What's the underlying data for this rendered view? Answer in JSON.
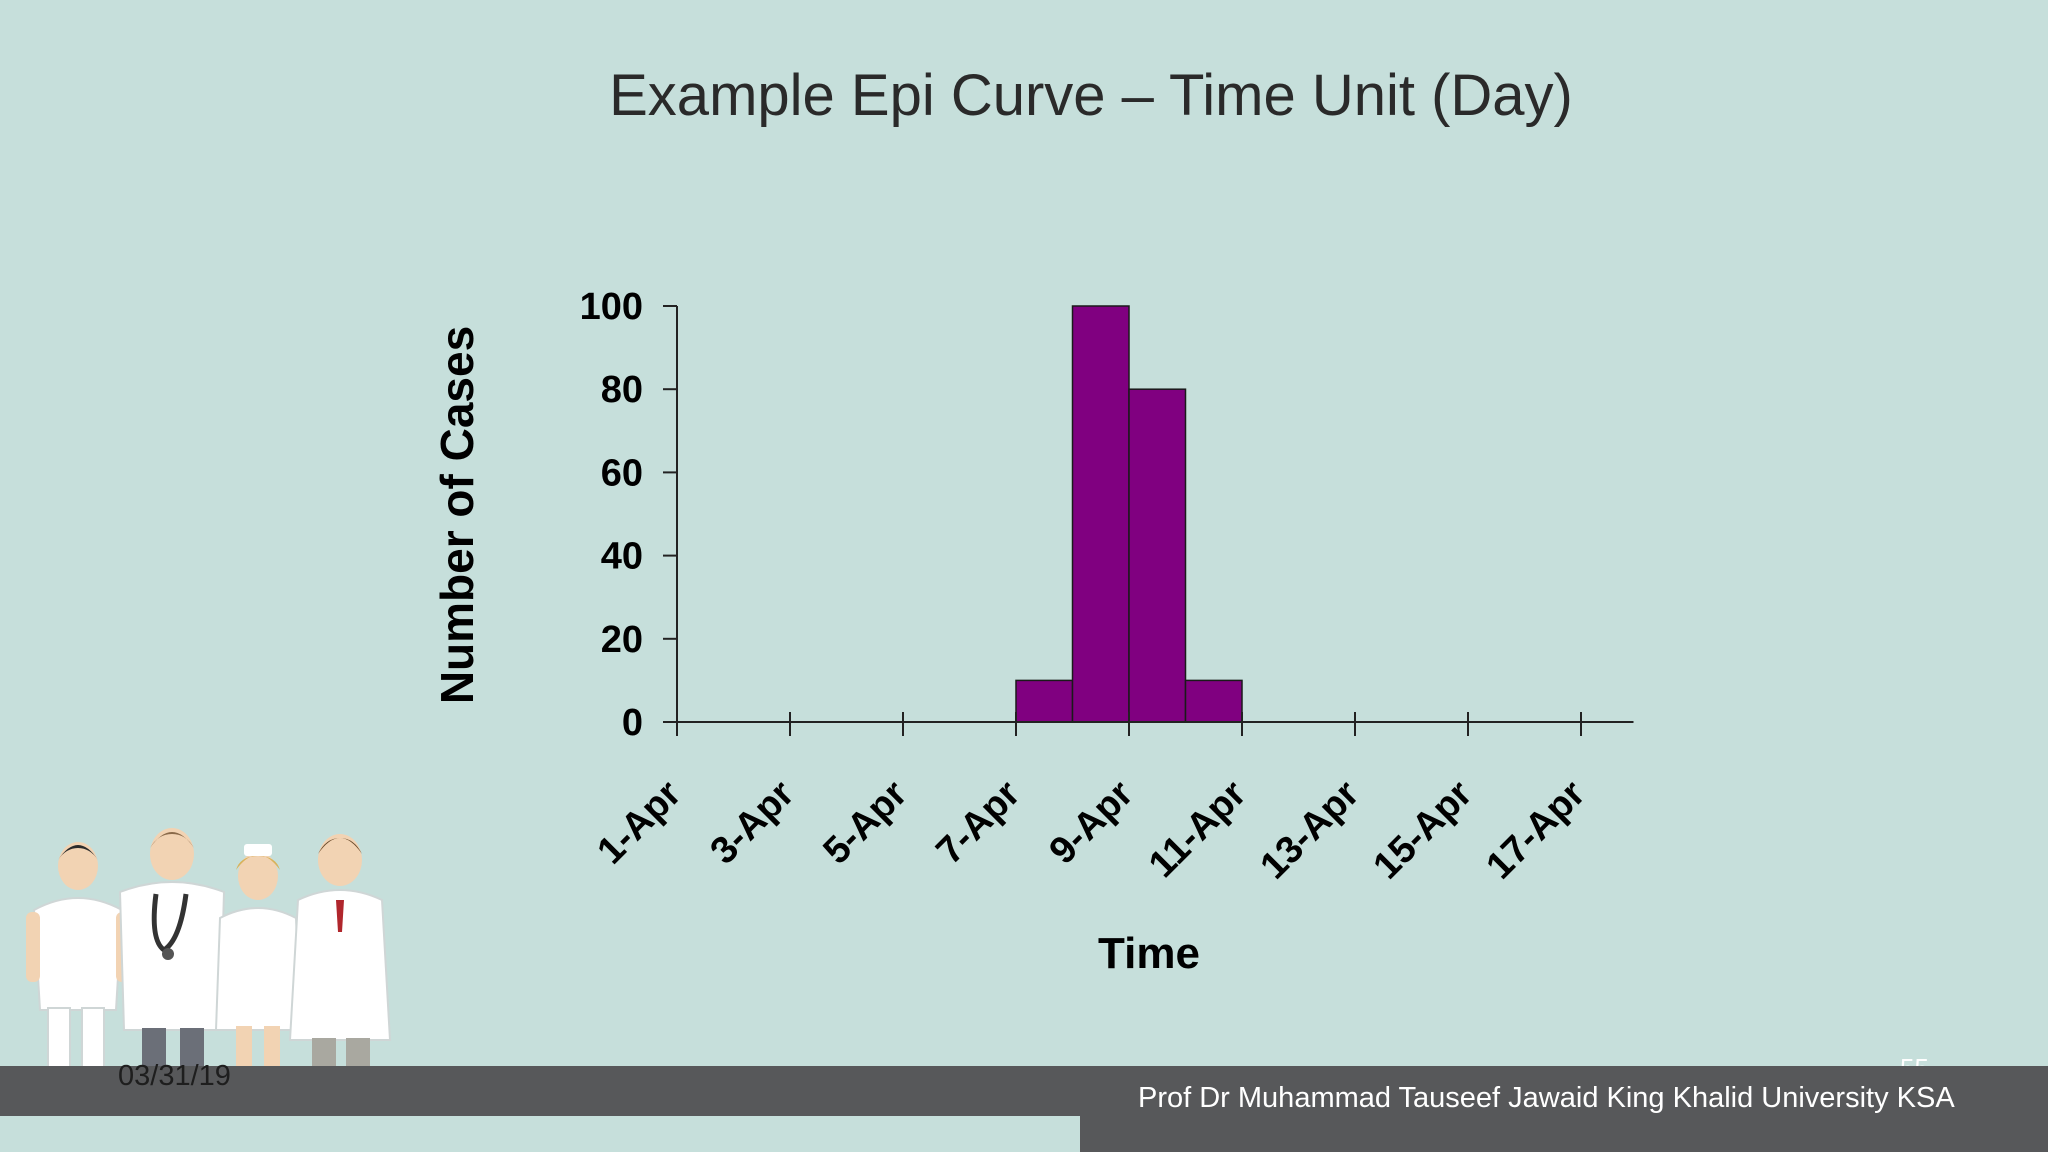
{
  "slide": {
    "title": "Example Epi Curve – Time Unit (Day)",
    "footer_date": "03/31/19",
    "footer_credit": "Prof Dr Muhammad Tauseef Jawaid King Khalid University KSA",
    "page_number": "55"
  },
  "colors": {
    "background": "#c6dfdb",
    "bar_fill": "#800080",
    "footer_bar": "#57585a"
  },
  "illustration": {
    "icon": "medical-staff-group-icon"
  },
  "chart_data": {
    "type": "bar",
    "title": "",
    "xlabel": "Time",
    "ylabel": "Number of Cases",
    "x_tick_labels": [
      "1-Apr",
      "3-Apr",
      "5-Apr",
      "7-Apr",
      "9-Apr",
      "11-Apr",
      "13-Apr",
      "15-Apr",
      "17-Apr"
    ],
    "categories": [
      "8-Apr",
      "9-Apr",
      "10-Apr",
      "11-Apr"
    ],
    "values": [
      10,
      100,
      80,
      10
    ],
    "y_ticks": [
      0,
      20,
      40,
      60,
      80,
      100
    ],
    "ylim": [
      0,
      100
    ],
    "xlim": [
      "1-Apr",
      "18-Apr"
    ],
    "grid": false,
    "legend": "none"
  }
}
